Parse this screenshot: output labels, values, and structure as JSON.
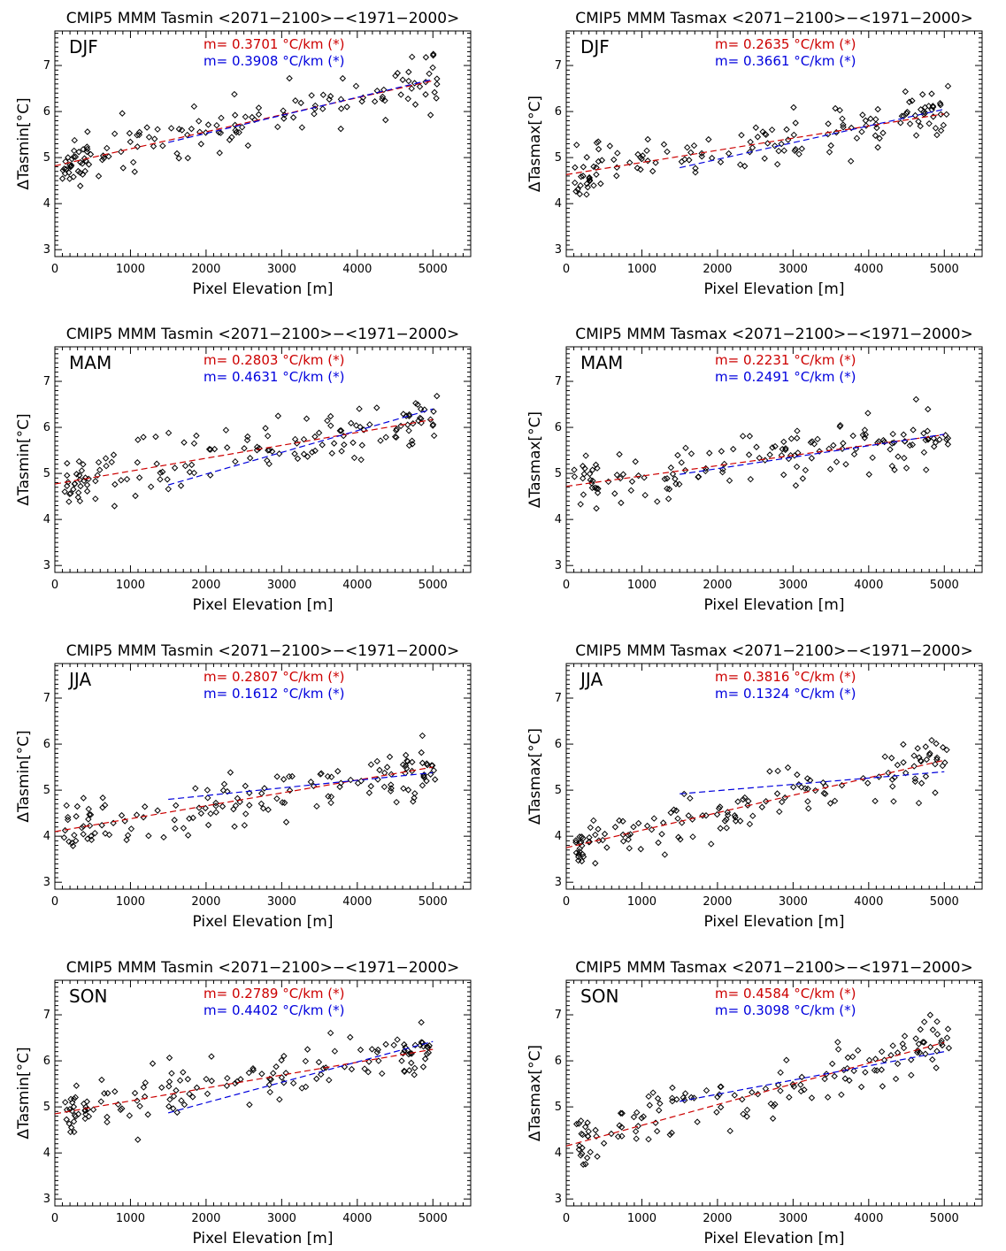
{
  "chart_data": [
    {
      "type": "scatter",
      "title": "CMIP5 MMM Tasmin <2071−2100>−<1971−2000>",
      "season": "DJF",
      "xlabel": "Pixel Elevation [m]",
      "ylabel": "ΔTasmin[°C]",
      "xlim": [
        0,
        5500
      ],
      "ylim": [
        2.85,
        7.75
      ],
      "xticks": [
        0,
        1000,
        2000,
        3000,
        4000,
        5000
      ],
      "yticks": [
        3,
        4,
        5,
        6,
        7
      ],
      "series": [
        {
          "name": "m=  0.3701 °C/km (*)",
          "color": "#cc0000",
          "kind": "dashed",
          "x": [
            0,
            5000
          ],
          "y": [
            4.82,
            6.67
          ]
        },
        {
          "name": "m=  0.3908 °C/km (*)",
          "color": "#0000dd",
          "kind": "dashed",
          "x": [
            1500,
            5000
          ],
          "y": [
            5.33,
            6.7
          ]
        }
      ]
    },
    {
      "type": "scatter",
      "title": "CMIP5 MMM Tasmax <2071−2100>−<1971−2000>",
      "season": "DJF",
      "xlabel": "Pixel Elevation [m]",
      "ylabel": "ΔTasmax[°C]",
      "xlim": [
        0,
        5500
      ],
      "ylim": [
        2.85,
        7.75
      ],
      "xticks": [
        0,
        1000,
        2000,
        3000,
        4000,
        5000
      ],
      "yticks": [
        3,
        4,
        5,
        6,
        7
      ],
      "series": [
        {
          "name": "m=  0.2635 °C/km (*)",
          "color": "#cc0000",
          "kind": "dashed",
          "x": [
            0,
            5000
          ],
          "y": [
            4.63,
            5.95
          ]
        },
        {
          "name": "m=  0.3661 °C/km (*)",
          "color": "#0000dd",
          "kind": "dashed",
          "x": [
            1500,
            5000
          ],
          "y": [
            4.78,
            6.05
          ]
        }
      ]
    },
    {
      "type": "scatter",
      "title": "CMIP5 MMM Tasmin <2071−2100>−<1971−2000>",
      "season": "MAM",
      "xlabel": "Pixel Elevation [m]",
      "ylabel": "ΔTasmin[°C]",
      "xlim": [
        0,
        5500
      ],
      "ylim": [
        2.85,
        7.75
      ],
      "xticks": [
        0,
        1000,
        2000,
        3000,
        4000,
        5000
      ],
      "yticks": [
        3,
        4,
        5,
        6,
        7
      ],
      "series": [
        {
          "name": "m=  0.2803 °C/km (*)",
          "color": "#cc0000",
          "kind": "dashed",
          "x": [
            0,
            5000
          ],
          "y": [
            4.77,
            6.17
          ]
        },
        {
          "name": "m=  0.4631 °C/km (*)",
          "color": "#0000dd",
          "kind": "dashed",
          "x": [
            1500,
            5000
          ],
          "y": [
            4.75,
            6.4
          ]
        }
      ]
    },
    {
      "type": "scatter",
      "title": "CMIP5 MMM Tasmax <2071−2100>−<1971−2000>",
      "season": "MAM",
      "xlabel": "Pixel Elevation [m]",
      "ylabel": "ΔTasmax[°C]",
      "xlim": [
        0,
        5500
      ],
      "ylim": [
        2.85,
        7.75
      ],
      "xticks": [
        0,
        1000,
        2000,
        3000,
        4000,
        5000
      ],
      "yticks": [
        3,
        4,
        5,
        6,
        7
      ],
      "series": [
        {
          "name": "m=  0.2231 °C/km (*)",
          "color": "#cc0000",
          "kind": "dashed",
          "x": [
            0,
            5000
          ],
          "y": [
            4.72,
            5.84
          ]
        },
        {
          "name": "m=  0.2491 °C/km (*)",
          "color": "#0000dd",
          "kind": "dashed",
          "x": [
            1500,
            5000
          ],
          "y": [
            4.98,
            5.85
          ]
        }
      ]
    },
    {
      "type": "scatter",
      "title": "CMIP5 MMM Tasmin <2071−2100>−<1971−2000>",
      "season": "JJA",
      "xlabel": "Pixel Elevation [m]",
      "ylabel": "ΔTasmin[°C]",
      "xlim": [
        0,
        5500
      ],
      "ylim": [
        2.85,
        7.75
      ],
      "xticks": [
        0,
        1000,
        2000,
        3000,
        4000,
        5000
      ],
      "yticks": [
        3,
        4,
        5,
        6,
        7
      ],
      "series": [
        {
          "name": "m=  0.2807 °C/km (*)",
          "color": "#cc0000",
          "kind": "dashed",
          "x": [
            0,
            5000
          ],
          "y": [
            4.1,
            5.5
          ]
        },
        {
          "name": "m=  0.1612 °C/km (*)",
          "color": "#0000dd",
          "kind": "dashed",
          "x": [
            1500,
            5000
          ],
          "y": [
            4.8,
            5.38
          ]
        }
      ]
    },
    {
      "type": "scatter",
      "title": "CMIP5 MMM Tasmax <2071−2100>−<1971−2000>",
      "season": "JJA",
      "xlabel": "Pixel Elevation [m]",
      "ylabel": "ΔTasmax[°C]",
      "xlim": [
        0,
        5500
      ],
      "ylim": [
        2.85,
        7.75
      ],
      "xticks": [
        0,
        1000,
        2000,
        3000,
        4000,
        5000
      ],
      "yticks": [
        3,
        4,
        5,
        6,
        7
      ],
      "series": [
        {
          "name": "m=  0.3816 °C/km (*)",
          "color": "#cc0000",
          "kind": "dashed",
          "x": [
            0,
            5000
          ],
          "y": [
            3.75,
            5.65
          ]
        },
        {
          "name": "m=  0.1324 °C/km (*)",
          "color": "#0000dd",
          "kind": "dashed",
          "x": [
            1500,
            5000
          ],
          "y": [
            4.92,
            5.4
          ]
        }
      ]
    },
    {
      "type": "scatter",
      "title": "CMIP5 MMM Tasmin <2071−2100>−<1971−2000>",
      "season": "SON",
      "xlabel": "Pixel Elevation [m]",
      "ylabel": "ΔTasmin[°C]",
      "xlim": [
        0,
        5500
      ],
      "ylim": [
        2.85,
        7.75
      ],
      "xticks": [
        0,
        1000,
        2000,
        3000,
        4000,
        5000
      ],
      "yticks": [
        3,
        4,
        5,
        6,
        7
      ],
      "series": [
        {
          "name": "m=  0.2789 °C/km (*)",
          "color": "#cc0000",
          "kind": "dashed",
          "x": [
            0,
            5000
          ],
          "y": [
            4.85,
            6.25
          ]
        },
        {
          "name": "m=  0.4402 °C/km (*)",
          "color": "#0000dd",
          "kind": "dashed",
          "x": [
            1500,
            5000
          ],
          "y": [
            4.87,
            6.42
          ]
        }
      ]
    },
    {
      "type": "scatter",
      "title": "CMIP5 MMM Tasmax <2071−2100>−<1971−2000>",
      "season": "SON",
      "xlabel": "Pixel Elevation [m]",
      "ylabel": "ΔTasmax[°C]",
      "xlim": [
        0,
        5500
      ],
      "ylim": [
        2.85,
        7.75
      ],
      "xticks": [
        0,
        1000,
        2000,
        3000,
        4000,
        5000
      ],
      "yticks": [
        3,
        4,
        5,
        6,
        7
      ],
      "series": [
        {
          "name": "m=  0.4584 °C/km (*)",
          "color": "#cc0000",
          "kind": "dashed",
          "x": [
            0,
            5000
          ],
          "y": [
            4.15,
            6.4
          ]
        },
        {
          "name": "m=  0.3098 °C/km (*)",
          "color": "#0000dd",
          "kind": "dashed",
          "x": [
            1500,
            5000
          ],
          "y": [
            5.12,
            6.2
          ]
        }
      ]
    }
  ]
}
